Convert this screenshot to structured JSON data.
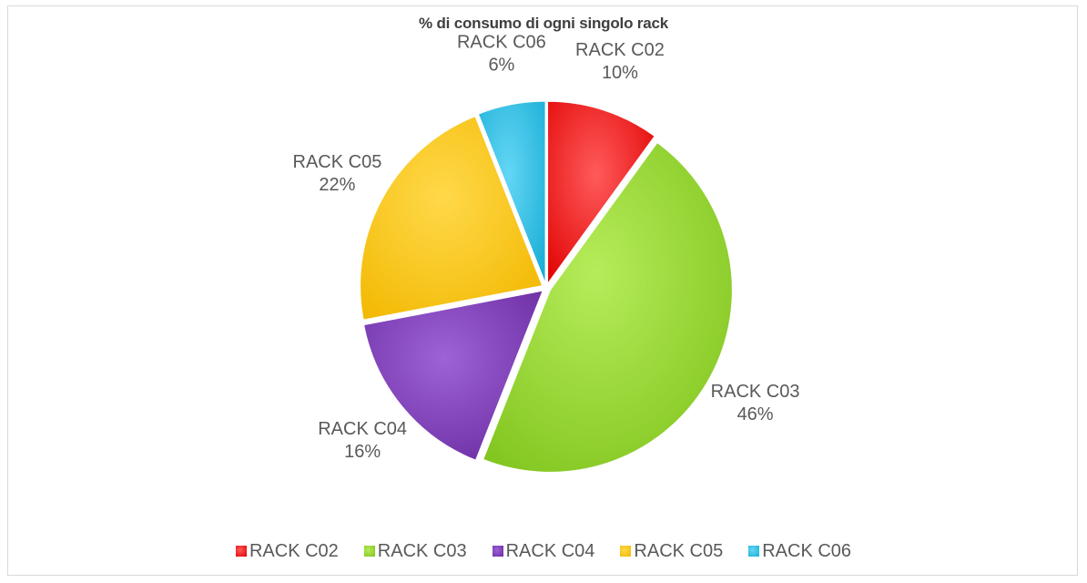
{
  "chart_data": {
    "type": "pie",
    "title": "% di consumo di ogni singolo rack",
    "legend_position": "bottom",
    "slices": [
      {
        "label": "RACK C02",
        "value": 10,
        "pct_label": "10%",
        "color": "#e00000",
        "highlight": "#ff5a5a"
      },
      {
        "label": "RACK C03",
        "value": 46,
        "pct_label": "46%",
        "color": "#7fc31c",
        "highlight": "#b6ec5a"
      },
      {
        "label": "RACK C04",
        "value": 16,
        "pct_label": "16%",
        "color": "#6a2aa0",
        "highlight": "#9d63d6"
      },
      {
        "label": "RACK C05",
        "value": 22,
        "pct_label": "22%",
        "color": "#f2b800",
        "highlight": "#ffd94a"
      },
      {
        "label": "RACK C06",
        "value": 6,
        "pct_label": "6%",
        "color": "#1aaed6",
        "highlight": "#63d6f5"
      }
    ]
  }
}
